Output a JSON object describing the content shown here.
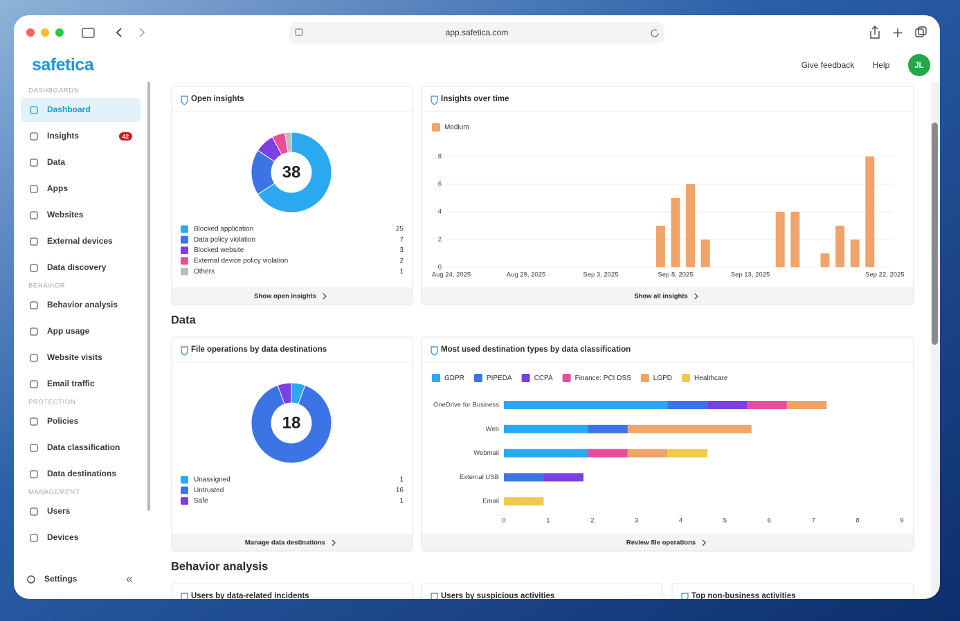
{
  "browser": {
    "url": "app.safetica.com"
  },
  "header": {
    "logo": "safetica",
    "feedback": "Give feedback",
    "help": "Help",
    "avatar": "JL"
  },
  "sidebar": {
    "sections": [
      {
        "title": "DASHBOARDS",
        "items": [
          {
            "label": "Dashboard",
            "active": true
          },
          {
            "label": "Insights",
            "badge": 42
          },
          {
            "label": "Data"
          },
          {
            "label": "Apps"
          },
          {
            "label": "Websites"
          },
          {
            "label": "External devices"
          },
          {
            "label": "Data discovery"
          }
        ]
      },
      {
        "title": "BEHAVIOR",
        "items": [
          {
            "label": "Behavior analysis"
          },
          {
            "label": "App usage"
          },
          {
            "label": "Website visits"
          },
          {
            "label": "Email traffic"
          }
        ]
      },
      {
        "title": "PROTECTION",
        "items": [
          {
            "label": "Policies"
          },
          {
            "label": "Data classification"
          },
          {
            "label": "Data destinations"
          }
        ]
      },
      {
        "title": "MANAGEMENT",
        "items": [
          {
            "label": "Users"
          },
          {
            "label": "Devices"
          }
        ]
      }
    ],
    "settings": "Settings"
  },
  "sections": [
    "Data",
    "Behavior analysis"
  ],
  "bottom_cards": [
    "Users by data-related incidents",
    "Users by suspicious activities",
    "Top non-business activities"
  ],
  "chart_data": [
    {
      "type": "donut",
      "title": "Open insights",
      "total": 38,
      "categories": [
        "Blocked application",
        "Data policy violation",
        "Blocked website",
        "External device policy violation",
        "Others"
      ],
      "values": [
        25,
        7,
        3,
        2,
        1
      ],
      "colors": [
        "#2aa9f1",
        "#3c74e5",
        "#7b3fe4",
        "#ea4c9c",
        "#bdbdbd"
      ],
      "link": "Show open insights"
    },
    {
      "type": "bar",
      "title": "Insights over time",
      "categories": [
        "Aug 24, 2025",
        null,
        null,
        null,
        null,
        "Aug 29, 2025",
        null,
        null,
        null,
        null,
        "Sep 3, 2025",
        null,
        null,
        null,
        null,
        "Sep 8, 2025",
        null,
        null,
        null,
        null,
        "Sep 13, 2025",
        null,
        null,
        null,
        null,
        null,
        null,
        null,
        null,
        "Sep 22, 2025"
      ],
      "series": [
        {
          "name": "Medium",
          "color": "#f0a46a",
          "values": [
            0,
            0,
            0,
            0,
            0,
            0,
            0,
            0,
            0,
            0,
            0,
            0,
            0,
            0,
            3,
            5,
            6,
            2,
            0,
            0,
            0,
            0,
            4,
            4,
            0,
            1,
            3,
            2,
            8,
            0
          ]
        }
      ],
      "ylim": [
        0,
        8
      ],
      "yticks": [
        0,
        2,
        4,
        6,
        8
      ],
      "grid": true,
      "link": "Show all insights"
    },
    {
      "type": "donut",
      "title": "File operations by data destinations",
      "total": 18,
      "categories": [
        "Unassigned",
        "Untrusted",
        "Safe"
      ],
      "values": [
        1,
        16,
        1
      ],
      "colors": [
        "#2aa9f1",
        "#3c74e5",
        "#7b3fe4"
      ],
      "link": "Manage data destinations"
    },
    {
      "type": "hbar_stacked",
      "title": "Most used destination types by data classification",
      "categories": [
        "OneDrive for Business",
        "Web",
        "Webmail",
        "External USB",
        "Email"
      ],
      "series": [
        {
          "name": "GDPR",
          "color": "#2aa9f1",
          "values": [
            3.7,
            1.9,
            1.9,
            null,
            null
          ]
        },
        {
          "name": "PIPEDA",
          "color": "#3c74e5",
          "values": [
            0.9,
            0.9,
            null,
            0.9,
            null
          ]
        },
        {
          "name": "CCPA",
          "color": "#7b3fe4",
          "values": [
            0.9,
            null,
            null,
            0.9,
            null
          ]
        },
        {
          "name": "Finance: PCI DSS",
          "color": "#ea4c9c",
          "values": [
            0.9,
            null,
            0.9,
            null,
            null
          ]
        },
        {
          "name": "LGPD",
          "color": "#f0a46a",
          "values": [
            0.9,
            2.8,
            0.9,
            null,
            null
          ]
        },
        {
          "name": "Healthcare",
          "color": "#efcb4c",
          "values": [
            null,
            null,
            0.9,
            null,
            0.9
          ]
        }
      ],
      "xlim": [
        0,
        9
      ],
      "xticks": [
        0,
        1,
        2,
        3,
        4,
        5,
        6,
        7,
        8,
        9
      ],
      "grid": false,
      "link": "Review file operations"
    }
  ]
}
